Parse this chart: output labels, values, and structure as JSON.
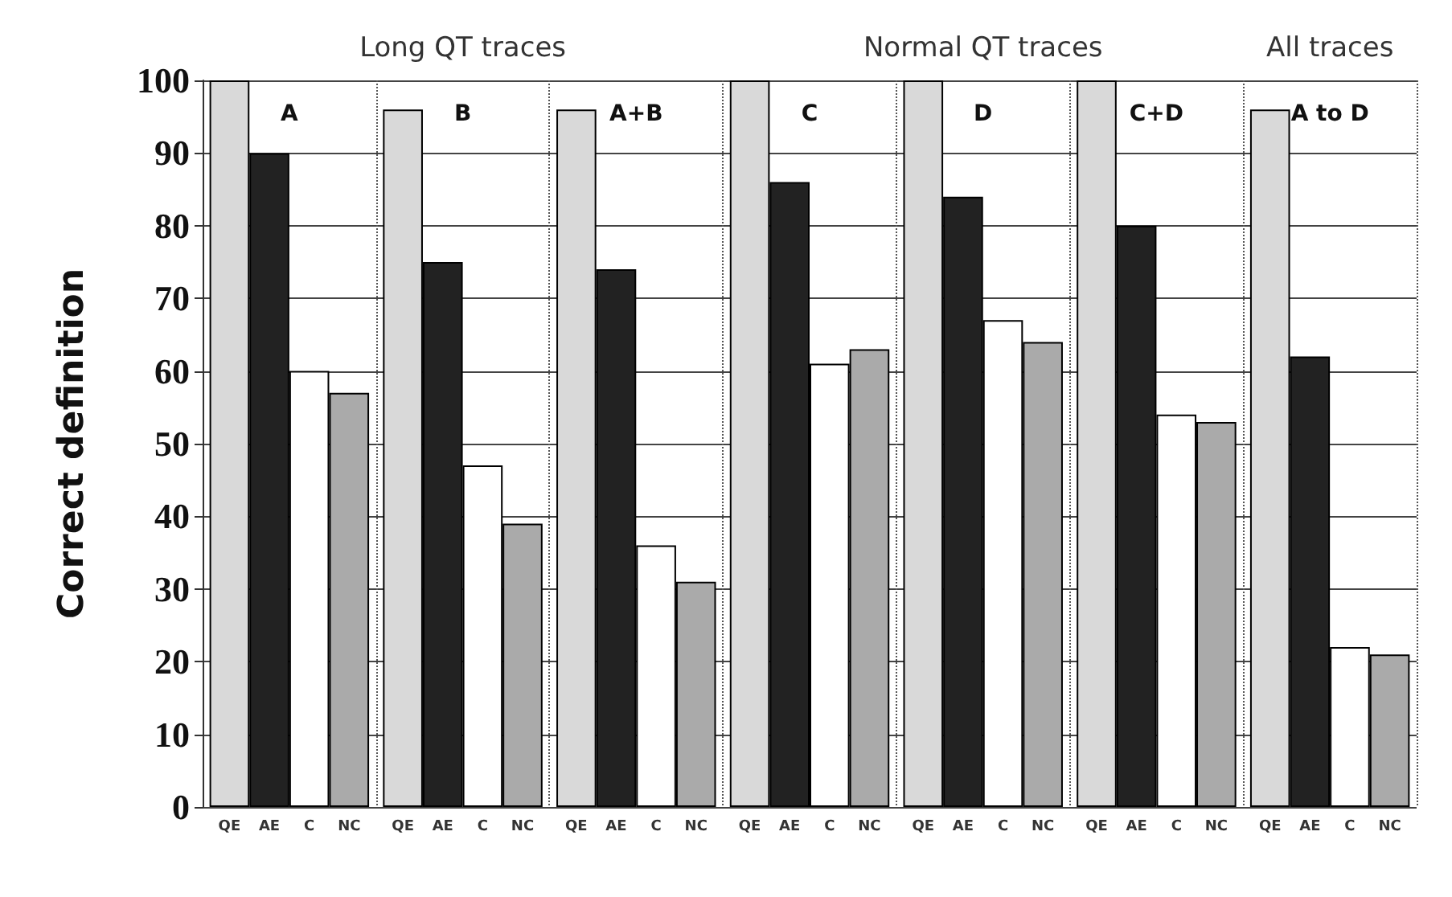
{
  "chart_data": {
    "type": "bar",
    "ylabel": "Correct definition",
    "categories": [
      "A",
      "B",
      "A+B",
      "C",
      "D",
      "C+D",
      "A to D"
    ],
    "series": [
      {
        "name": "QE",
        "color": "#d9d9d9",
        "values": [
          100,
          96,
          96,
          100,
          100,
          100,
          96
        ]
      },
      {
        "name": "AE",
        "color": "#222222",
        "values": [
          90,
          75,
          74,
          86,
          84,
          80,
          62
        ]
      },
      {
        "name": "C",
        "color": "#ffffff",
        "values": [
          60,
          47,
          36,
          61,
          67,
          54,
          22
        ]
      },
      {
        "name": "NC",
        "color": "#aaaaaa",
        "values": [
          57,
          39,
          31,
          63,
          64,
          53,
          21
        ]
      }
    ],
    "ylim": [
      0,
      100
    ],
    "yticks": [
      0,
      10,
      20,
      30,
      40,
      50,
      60,
      70,
      80,
      90,
      100
    ],
    "grid": true,
    "legend": false,
    "annotations": [
      "Long QT traces",
      "Normal QT traces",
      "All traces"
    ]
  }
}
